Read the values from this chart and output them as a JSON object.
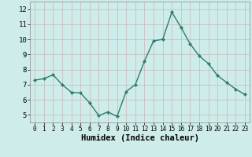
{
  "x": [
    0,
    1,
    2,
    3,
    4,
    5,
    6,
    7,
    8,
    9,
    10,
    11,
    12,
    13,
    14,
    15,
    16,
    17,
    18,
    19,
    20,
    21,
    22,
    23
  ],
  "y": [
    7.3,
    7.4,
    7.65,
    7.0,
    6.5,
    6.45,
    5.8,
    4.95,
    5.2,
    4.9,
    6.55,
    7.0,
    8.55,
    9.9,
    10.0,
    11.8,
    10.8,
    9.7,
    8.9,
    8.4,
    7.6,
    7.15,
    6.7,
    6.35
  ],
  "line_color": "#2e7d6e",
  "marker": "D",
  "marker_size": 2.2,
  "line_width": 1.0,
  "bg_color": "#ceecea",
  "grid_color": "#c8b8b8",
  "xlabel": "Humidex (Indice chaleur)",
  "xlabel_fontsize": 7.5,
  "tick_fontsize": 6.5,
  "ylim": [
    4.5,
    12.5
  ],
  "xlim": [
    -0.5,
    23.5
  ],
  "yticks": [
    5,
    6,
    7,
    8,
    9,
    10,
    11,
    12
  ],
  "xticks": [
    0,
    1,
    2,
    3,
    4,
    5,
    6,
    7,
    8,
    9,
    10,
    11,
    12,
    13,
    14,
    15,
    16,
    17,
    18,
    19,
    20,
    21,
    22,
    23
  ]
}
